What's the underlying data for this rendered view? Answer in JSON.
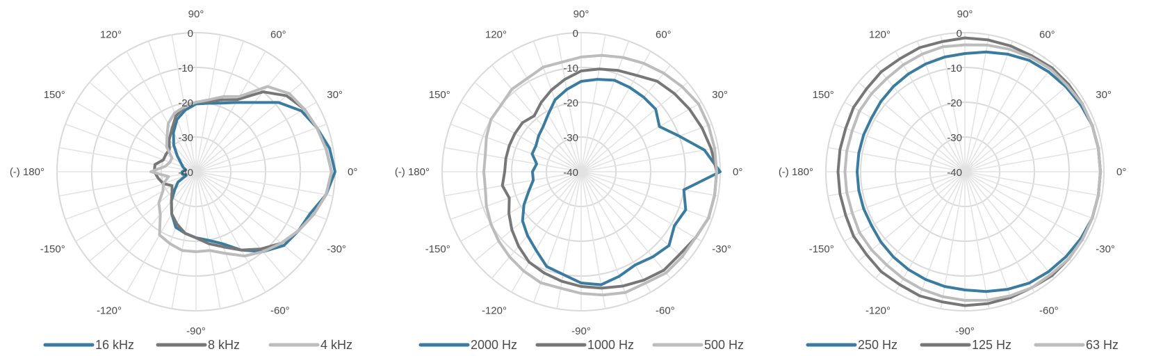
{
  "chart_data": [
    {
      "type": "polar",
      "title": "",
      "angular_unit": "degrees",
      "radial_range": [
        -40,
        0
      ],
      "radial_ticks": [
        0,
        -10,
        -20,
        -30,
        -40
      ],
      "radial_tick_labels": [
        "0",
        "-10",
        "-20",
        "-30",
        "-40"
      ],
      "angle_labels": [
        {
          "angle": 0,
          "label": "0°"
        },
        {
          "angle": 30,
          "label": "30°"
        },
        {
          "angle": 60,
          "label": "60°"
        },
        {
          "angle": 90,
          "label": "90°"
        },
        {
          "angle": 120,
          "label": "120°"
        },
        {
          "angle": 150,
          "label": "150°"
        },
        {
          "angle": 180,
          "label": "(-) 180°"
        },
        {
          "angle": -150,
          "label": "-150°"
        },
        {
          "angle": -120,
          "label": "-120°"
        },
        {
          "angle": -90,
          "label": "-90°"
        },
        {
          "angle": -60,
          "label": "-60°"
        },
        {
          "angle": -30,
          "label": "-30°"
        }
      ],
      "grid": true,
      "legend_position": "bottom",
      "series": [
        {
          "name": "16 kHz",
          "color": "#3a7ca0",
          "angles": [
            0,
            10,
            20,
            30,
            40,
            50,
            60,
            70,
            80,
            90,
            100,
            110,
            120,
            130,
            140,
            150,
            160,
            170,
            180,
            -170,
            -160,
            -150,
            -140,
            -130,
            -120,
            -110,
            -100,
            -90,
            -80,
            -70,
            -60,
            -50,
            -40,
            -30,
            -20,
            -10
          ],
          "values": [
            0,
            -1,
            -3,
            -5,
            -9,
            -14,
            -17,
            -19,
            -20,
            -20.5,
            -22,
            -24,
            -27,
            -30,
            -33,
            -35,
            -36,
            -37,
            -36,
            -36,
            -37,
            -34,
            -32,
            -29,
            -26,
            -23,
            -22,
            -21,
            -20,
            -18,
            -14,
            -10,
            -7,
            -6,
            -5,
            -2
          ]
        },
        {
          "name": "8 kHz",
          "color": "#777777",
          "angles": [
            0,
            10,
            20,
            30,
            40,
            50,
            60,
            70,
            80,
            90,
            100,
            110,
            120,
            130,
            140,
            150,
            160,
            170,
            180,
            -170,
            -160,
            -150,
            -140,
            -130,
            -120,
            -110,
            -100,
            -90,
            -80,
            -70,
            -60,
            -50,
            -40,
            -30,
            -20,
            -10
          ],
          "values": [
            -1,
            -2,
            -3,
            -4,
            -6,
            -10,
            -16,
            -18,
            -19.5,
            -20,
            -21,
            -23,
            -26,
            -28,
            -30,
            -30,
            -30,
            -28,
            -28,
            -29,
            -30,
            -32,
            -31,
            -29,
            -26,
            -24,
            -22,
            -21,
            -19,
            -17,
            -14,
            -11,
            -8,
            -6,
            -4,
            -2
          ]
        },
        {
          "name": "4 kHz",
          "color": "#bcbcbc",
          "angles": [
            0,
            10,
            20,
            30,
            40,
            50,
            60,
            70,
            80,
            90,
            100,
            110,
            120,
            130,
            140,
            150,
            160,
            170,
            180,
            -170,
            -160,
            -150,
            -140,
            -130,
            -120,
            -110,
            -100,
            -90,
            -80,
            -70,
            -60,
            -50,
            -40,
            -30,
            -20,
            -10
          ],
          "values": [
            -1,
            -2,
            -3,
            -4,
            -5,
            -8,
            -15,
            -17,
            -19,
            -20,
            -21,
            -22,
            -24,
            -27,
            -29,
            -32,
            -32,
            -31,
            -27,
            -32,
            -30,
            -29,
            -26,
            -24,
            -19,
            -18,
            -17,
            -17,
            -17,
            -15,
            -12,
            -10,
            -8,
            -6,
            -4,
            -2
          ]
        }
      ]
    },
    {
      "type": "polar",
      "title": "",
      "angular_unit": "degrees",
      "radial_range": [
        -40,
        0
      ],
      "radial_ticks": [
        0,
        -10,
        -20,
        -30,
        -40
      ],
      "radial_tick_labels": [
        "0",
        "-10",
        "-20",
        "-30",
        "-40"
      ],
      "angle_labels": [
        {
          "angle": 0,
          "label": "0°"
        },
        {
          "angle": 30,
          "label": "30°"
        },
        {
          "angle": 60,
          "label": "60°"
        },
        {
          "angle": 90,
          "label": "90°"
        },
        {
          "angle": 120,
          "label": "120°"
        },
        {
          "angle": 150,
          "label": "150°"
        },
        {
          "angle": 180,
          "label": "(-) 180°"
        },
        {
          "angle": -150,
          "label": "-150°"
        },
        {
          "angle": -120,
          "label": "-120°"
        },
        {
          "angle": -90,
          "label": "-90°"
        },
        {
          "angle": -60,
          "label": "-60°"
        },
        {
          "angle": -30,
          "label": "-30°"
        }
      ],
      "grid": true,
      "legend_position": "bottom",
      "series": [
        {
          "name": "2000 Hz",
          "color": "#3a7ca0",
          "angles": [
            0,
            10,
            20,
            30,
            40,
            50,
            60,
            70,
            80,
            90,
            100,
            110,
            120,
            130,
            140,
            150,
            160,
            170,
            180,
            -170,
            -160,
            -150,
            -140,
            -130,
            -120,
            -110,
            -100,
            -90,
            -80,
            -70,
            -60,
            -50,
            -40,
            -30,
            -20,
            -10
          ],
          "values": [
            0,
            -4,
            -10,
            -14,
            -12,
            -12,
            -12,
            -12,
            -13,
            -14,
            -16,
            -18,
            -21,
            -23,
            -24,
            -25,
            -25,
            -27,
            -26,
            -26,
            -24,
            -21,
            -18,
            -16,
            -14,
            -11,
            -10,
            -8,
            -7,
            -8,
            -9,
            -8,
            -7,
            -9,
            -8,
            -10
          ]
        },
        {
          "name": "1000 Hz",
          "color": "#777777",
          "angles": [
            0,
            10,
            20,
            30,
            40,
            50,
            60,
            70,
            80,
            90,
            100,
            110,
            120,
            130,
            140,
            150,
            160,
            170,
            180,
            -170,
            -160,
            -150,
            -140,
            -130,
            -120,
            -110,
            -100,
            -90,
            -80,
            -70,
            -60,
            -50,
            -40,
            -30,
            -20,
            -10
          ],
          "values": [
            -1,
            -2,
            -3,
            -4,
            -5,
            -6,
            -8,
            -9,
            -10,
            -11,
            -13,
            -15,
            -17,
            -19,
            -18,
            -18,
            -18,
            -18,
            -18,
            -17,
            -18,
            -16,
            -14,
            -12,
            -10,
            -9,
            -8,
            -7,
            -6,
            -5,
            -4,
            -3,
            -3,
            -2,
            -1,
            -1
          ]
        },
        {
          "name": "500 Hz",
          "color": "#bcbcbc",
          "angles": [
            0,
            10,
            20,
            30,
            40,
            50,
            60,
            70,
            80,
            90,
            100,
            110,
            120,
            130,
            140,
            150,
            160,
            170,
            180,
            -170,
            -160,
            -150,
            -140,
            -130,
            -120,
            -110,
            -100,
            -90,
            -80,
            -70,
            -60,
            -50,
            -40,
            -30,
            -20,
            -10
          ],
          "values": [
            -1,
            -1,
            -1,
            -1,
            -2,
            -3,
            -4,
            -5,
            -6,
            -7,
            -8,
            -8,
            -9,
            -9,
            -10,
            -10,
            -11,
            -12,
            -12,
            -12,
            -11,
            -10,
            -9,
            -8,
            -7,
            -6,
            -6,
            -5,
            -4,
            -3,
            -3,
            -2,
            -2,
            -2,
            -1,
            -1
          ]
        }
      ]
    },
    {
      "type": "polar",
      "title": "",
      "angular_unit": "degrees",
      "radial_range": [
        -40,
        0
      ],
      "radial_ticks": [
        0,
        -10,
        -20,
        -30,
        -40
      ],
      "radial_tick_labels": [
        "0",
        "-10",
        "-20",
        "-30",
        "-40"
      ],
      "angle_labels": [
        {
          "angle": 0,
          "label": "0°"
        },
        {
          "angle": 30,
          "label": "30°"
        },
        {
          "angle": 60,
          "label": "60°"
        },
        {
          "angle": 90,
          "label": "90°"
        },
        {
          "angle": 120,
          "label": "120°"
        },
        {
          "angle": 150,
          "label": "150°"
        },
        {
          "angle": 180,
          "label": "(-) 180°"
        },
        {
          "angle": -150,
          "label": "-150°"
        },
        {
          "angle": -120,
          "label": "-120°"
        },
        {
          "angle": -90,
          "label": "-90°"
        },
        {
          "angle": -60,
          "label": "-60°"
        },
        {
          "angle": -30,
          "label": "-30°"
        }
      ],
      "grid": true,
      "legend_position": "bottom",
      "series": [
        {
          "name": "250 Hz",
          "color": "#3a7ca0",
          "angles": [
            0,
            10,
            20,
            30,
            40,
            50,
            60,
            70,
            80,
            90,
            100,
            110,
            120,
            130,
            140,
            150,
            160,
            170,
            180,
            -170,
            -160,
            -150,
            -140,
            -130,
            -120,
            -110,
            -100,
            -90,
            -80,
            -70,
            -60,
            -50,
            -40,
            -30,
            -20,
            -10
          ],
          "values": [
            -1,
            -1,
            -1,
            -1.5,
            -2,
            -2.5,
            -3,
            -4,
            -5,
            -6,
            -6.5,
            -7,
            -7.5,
            -8,
            -8.5,
            -9,
            -9,
            -9,
            -9,
            -9,
            -9,
            -9,
            -8.5,
            -8,
            -7.5,
            -7,
            -6.5,
            -6,
            -5,
            -4,
            -3,
            -2.5,
            -2,
            -1.5,
            -1,
            -1
          ]
        },
        {
          "name": "125 Hz",
          "color": "#777777",
          "angles": [
            0,
            10,
            20,
            30,
            40,
            50,
            60,
            70,
            80,
            90,
            100,
            110,
            120,
            130,
            140,
            150,
            160,
            170,
            180,
            -170,
            -160,
            -150,
            -140,
            -130,
            -120,
            -110,
            -100,
            -90,
            -80,
            -70,
            -60,
            -50,
            -40,
            -30,
            -20,
            -10
          ],
          "values": [
            -1,
            -1,
            -1,
            -1,
            -1,
            -1,
            -1.5,
            -1.5,
            -1.5,
            -1.5,
            -2,
            -2,
            -2.5,
            -2.5,
            -3,
            -3,
            -3.5,
            -3.5,
            -3.5,
            -3.5,
            -3.5,
            -3,
            -3,
            -2.5,
            -2.5,
            -2,
            -2,
            -1.5,
            -1.5,
            -1.5,
            -1.5,
            -1,
            -1,
            -1,
            -1,
            -1
          ]
        },
        {
          "name": "63 Hz",
          "color": "#bcbcbc",
          "angles": [
            0,
            10,
            20,
            30,
            40,
            50,
            60,
            70,
            80,
            90,
            100,
            110,
            120,
            130,
            140,
            150,
            160,
            170,
            180,
            -170,
            -160,
            -150,
            -140,
            -130,
            -120,
            -110,
            -100,
            -90,
            -80,
            -70,
            -60,
            -50,
            -40,
            -30,
            -20,
            -10
          ],
          "values": [
            -1,
            -1,
            -1,
            -1,
            -1.5,
            -1.5,
            -2,
            -2.5,
            -3,
            -3.5,
            -3.5,
            -4,
            -4.5,
            -5,
            -5,
            -5,
            -5.5,
            -5.5,
            -5.5,
            -5.5,
            -5.5,
            -5,
            -5,
            -5,
            -4.5,
            -4,
            -3.5,
            -3,
            -2.5,
            -2,
            -1.5,
            -1.5,
            -1,
            -1,
            -1,
            -1
          ]
        }
      ]
    }
  ]
}
